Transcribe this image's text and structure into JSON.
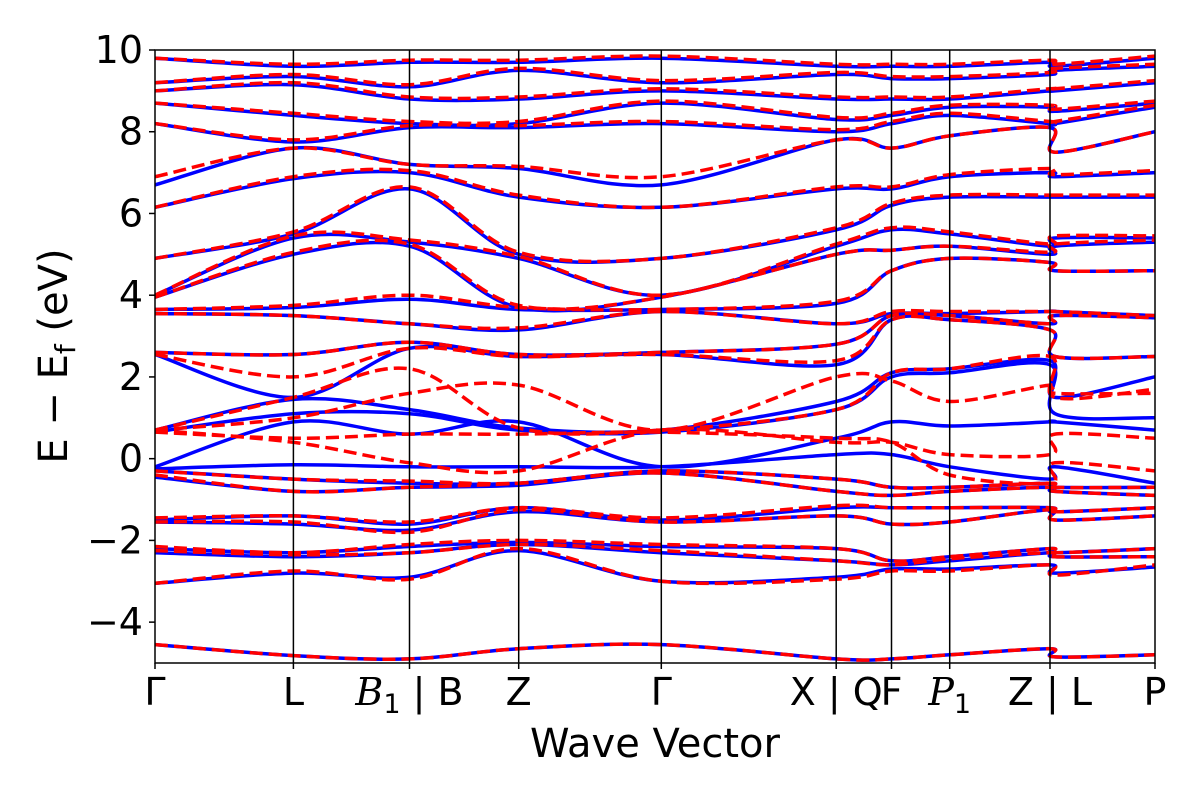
{
  "chart_data": {
    "type": "line",
    "xlabel": "Wave Vector",
    "ylabel": "E − Ef (eV)",
    "ylabel_parts": {
      "main": "E − E",
      "sub": "f",
      "unit": " (eV)"
    },
    "ylim": [
      -5,
      10
    ],
    "yticks": [
      {
        "value": 10,
        "label": "10"
      },
      {
        "value": 8,
        "label": "8"
      },
      {
        "value": 6,
        "label": "6"
      },
      {
        "value": 4,
        "label": "4"
      },
      {
        "value": 2,
        "label": "2"
      },
      {
        "value": 0,
        "label": "0"
      },
      {
        "value": -2,
        "label": "−2"
      },
      {
        "value": -4,
        "label": "−4"
      }
    ],
    "kpath": [
      {
        "pos": 0.0,
        "label": "Γ",
        "italic": false
      },
      {
        "pos": 0.1384,
        "label": "L",
        "italic": false
      },
      {
        "pos": 0.2545,
        "label": "B",
        "sub": "1",
        "suffix": " | B",
        "italic": true
      },
      {
        "pos": 0.3637,
        "label": "Z",
        "italic": false
      },
      {
        "pos": 0.5063,
        "label": "Γ",
        "italic": false
      },
      {
        "pos": 0.6812,
        "label": "X | Q",
        "italic": false
      },
      {
        "pos": 0.7365,
        "label": "F",
        "italic": false
      },
      {
        "pos": 0.7947,
        "label": "P",
        "sub": "1",
        "italic": true
      },
      {
        "pos": 0.895,
        "label": "Z | L",
        "italic": false
      },
      {
        "pos": 1.0,
        "label": "P",
        "italic": false
      }
    ],
    "series": [
      {
        "style": "solid",
        "color": "#0000ff",
        "bands": [
          [
            -4.55,
            -4.82,
            -4.9,
            -4.65,
            -4.55,
            -4.9,
            -4.9,
            -4.8,
            -4.65,
            -4.85,
            -4.8
          ],
          [
            -3.05,
            -2.8,
            -2.9,
            -2.25,
            -3.0,
            -2.9,
            -2.7,
            -2.7,
            -2.6,
            -2.8,
            -2.65
          ],
          [
            -2.3,
            -2.4,
            -2.3,
            -2.1,
            -2.3,
            -2.5,
            -2.6,
            -2.5,
            -2.3,
            -2.4,
            -2.4
          ],
          [
            -2.2,
            -2.3,
            -2.15,
            -2.05,
            -2.15,
            -2.2,
            -2.5,
            -2.4,
            -2.2,
            -2.3,
            -2.2
          ],
          [
            -1.55,
            -1.6,
            -1.75,
            -1.3,
            -1.55,
            -1.4,
            -1.6,
            -1.55,
            -1.25,
            -1.5,
            -1.4
          ],
          [
            -1.5,
            -1.4,
            -1.6,
            -1.2,
            -1.5,
            -1.2,
            -1.2,
            -1.2,
            -1.2,
            -1.3,
            -1.2
          ],
          [
            -0.45,
            -0.8,
            -0.7,
            -0.65,
            -0.35,
            -0.8,
            -0.9,
            -0.8,
            -0.7,
            -0.8,
            -0.9
          ],
          [
            -0.3,
            -0.5,
            -0.6,
            -0.6,
            -0.3,
            -0.5,
            -0.7,
            -0.7,
            -0.6,
            -0.7,
            -0.7
          ],
          [
            -0.25,
            -0.15,
            -0.2,
            -0.2,
            -0.2,
            0.1,
            0.1,
            -0.2,
            -0.5,
            -0.2,
            -0.6
          ],
          [
            -0.2,
            0.9,
            0.6,
            0.9,
            -0.2,
            0.5,
            0.9,
            0.8,
            0.9,
            0.9,
            0.7
          ],
          [
            0.65,
            1.1,
            1.1,
            0.7,
            0.65,
            1.2,
            2.0,
            2.1,
            2.3,
            1.1,
            1.0
          ],
          [
            0.7,
            1.45,
            1.2,
            0.75,
            0.7,
            1.4,
            2.1,
            2.2,
            2.4,
            1.5,
            2.0
          ],
          [
            2.55,
            1.5,
            2.7,
            2.5,
            2.55,
            2.3,
            3.4,
            3.4,
            3.15,
            2.5,
            2.5
          ],
          [
            2.6,
            2.55,
            2.85,
            2.55,
            2.6,
            2.8,
            3.5,
            3.5,
            3.3,
            3.5,
            3.45
          ],
          [
            3.55,
            3.5,
            3.3,
            3.15,
            3.6,
            3.3,
            3.55,
            3.55,
            3.6,
            3.6,
            3.5
          ],
          [
            3.65,
            3.7,
            3.9,
            3.65,
            3.65,
            3.8,
            4.6,
            4.9,
            4.8,
            4.6,
            4.6
          ],
          [
            3.95,
            5.0,
            5.2,
            3.7,
            3.95,
            5.0,
            5.1,
            5.2,
            5.0,
            5.2,
            5.3
          ],
          [
            4.0,
            5.4,
            5.3,
            4.9,
            4.0,
            5.2,
            5.6,
            5.5,
            5.2,
            5.4,
            5.4
          ],
          [
            4.9,
            5.5,
            6.6,
            5.0,
            4.9,
            5.6,
            6.2,
            6.4,
            6.4,
            6.4,
            6.4
          ],
          [
            6.15,
            6.85,
            7.0,
            6.4,
            6.15,
            6.6,
            6.6,
            6.9,
            7.0,
            6.9,
            7.0
          ],
          [
            6.7,
            7.6,
            7.2,
            7.1,
            6.7,
            7.8,
            7.6,
            7.9,
            8.1,
            7.5,
            8.0
          ],
          [
            8.2,
            7.75,
            8.1,
            8.1,
            8.2,
            8.0,
            8.2,
            8.4,
            8.2,
            8.2,
            8.6
          ],
          [
            8.7,
            8.4,
            8.2,
            8.2,
            8.7,
            8.3,
            8.4,
            8.6,
            8.6,
            8.5,
            8.7
          ],
          [
            9.0,
            9.15,
            8.8,
            8.8,
            9.0,
            8.8,
            8.8,
            8.8,
            9.0,
            9.0,
            9.2
          ],
          [
            9.2,
            9.35,
            9.1,
            9.5,
            9.2,
            9.4,
            9.3,
            9.3,
            9.4,
            9.5,
            9.6
          ],
          [
            9.8,
            9.6,
            9.7,
            9.7,
            9.8,
            9.6,
            9.6,
            9.6,
            9.7,
            9.6,
            9.8
          ]
        ]
      },
      {
        "style": "dashed",
        "color": "#ff0000",
        "bands": [
          [
            -4.55,
            -4.82,
            -4.9,
            -4.65,
            -4.55,
            -4.9,
            -4.9,
            -4.8,
            -4.65,
            -4.85,
            -4.8
          ],
          [
            -3.05,
            -2.75,
            -2.95,
            -2.2,
            -3.0,
            -2.95,
            -2.75,
            -2.75,
            -2.6,
            -2.85,
            -2.6
          ],
          [
            -2.25,
            -2.35,
            -2.3,
            -2.1,
            -2.25,
            -2.5,
            -2.6,
            -2.45,
            -2.3,
            -2.4,
            -2.4
          ],
          [
            -2.15,
            -2.3,
            -2.1,
            -2.0,
            -2.1,
            -2.2,
            -2.5,
            -2.4,
            -2.2,
            -2.3,
            -2.2
          ],
          [
            -1.55,
            -1.55,
            -1.8,
            -1.25,
            -1.55,
            -1.4,
            -1.6,
            -1.55,
            -1.25,
            -1.5,
            -1.4
          ],
          [
            -1.45,
            -1.4,
            -1.55,
            -1.2,
            -1.45,
            -1.15,
            -1.2,
            -1.2,
            -1.2,
            -1.3,
            -1.2
          ],
          [
            -0.4,
            -0.8,
            -0.7,
            -0.6,
            -0.35,
            -0.8,
            -0.9,
            -0.8,
            -0.7,
            -0.8,
            -0.9
          ],
          [
            -0.3,
            -0.5,
            -0.55,
            -0.6,
            -0.3,
            -0.5,
            -0.7,
            -0.7,
            -0.6,
            -0.7,
            -0.7
          ],
          [
            0.65,
            0.5,
            0.6,
            0.6,
            0.65,
            0.5,
            0.4,
            -0.4,
            -0.6,
            -0.1,
            -0.3
          ],
          [
            0.7,
            0.4,
            -0.1,
            -0.3,
            0.7,
            0.4,
            0.4,
            0.1,
            0.1,
            0.6,
            0.5
          ],
          [
            0.7,
            1.0,
            1.6,
            1.8,
            0.7,
            2.0,
            1.9,
            1.4,
            1.8,
            1.6,
            1.6
          ],
          [
            0.7,
            1.5,
            2.2,
            0.75,
            0.7,
            1.2,
            2.1,
            2.2,
            2.5,
            1.5,
            1.7
          ],
          [
            2.55,
            2.0,
            2.7,
            2.5,
            2.55,
            2.4,
            3.4,
            3.4,
            3.15,
            2.5,
            2.5
          ],
          [
            2.6,
            2.55,
            2.85,
            2.55,
            2.6,
            2.8,
            3.5,
            3.5,
            3.3,
            3.5,
            3.45
          ],
          [
            3.55,
            3.5,
            3.3,
            3.2,
            3.6,
            3.3,
            3.6,
            3.6,
            3.6,
            3.6,
            3.5
          ],
          [
            3.65,
            3.75,
            4.0,
            3.7,
            3.65,
            3.85,
            4.6,
            4.9,
            4.8,
            4.6,
            4.6
          ],
          [
            3.95,
            5.05,
            5.25,
            3.75,
            3.95,
            5.0,
            5.1,
            5.2,
            5.05,
            5.25,
            5.35
          ],
          [
            4.0,
            5.45,
            5.35,
            4.95,
            4.0,
            5.25,
            5.65,
            5.55,
            5.25,
            5.45,
            5.45
          ],
          [
            4.9,
            5.55,
            6.65,
            5.05,
            4.9,
            5.65,
            6.25,
            6.45,
            6.45,
            6.45,
            6.45
          ],
          [
            6.15,
            6.9,
            7.05,
            6.45,
            6.15,
            6.65,
            6.65,
            6.95,
            7.1,
            6.95,
            7.05
          ],
          [
            6.9,
            7.6,
            7.2,
            7.15,
            6.9,
            7.8,
            7.6,
            7.9,
            8.1,
            7.5,
            8.0
          ],
          [
            8.2,
            7.8,
            8.15,
            8.15,
            8.25,
            8.05,
            8.25,
            8.45,
            8.25,
            8.25,
            8.65
          ],
          [
            8.7,
            8.45,
            8.25,
            8.25,
            8.75,
            8.35,
            8.45,
            8.65,
            8.65,
            8.55,
            8.75
          ],
          [
            9.0,
            9.2,
            8.85,
            8.85,
            9.05,
            8.85,
            8.85,
            8.85,
            9.05,
            9.05,
            9.25
          ],
          [
            9.2,
            9.4,
            9.15,
            9.55,
            9.25,
            9.45,
            9.35,
            9.35,
            9.45,
            9.55,
            9.65
          ],
          [
            9.8,
            9.65,
            9.75,
            9.75,
            9.85,
            9.65,
            9.65,
            9.65,
            9.75,
            9.65,
            9.85
          ]
        ]
      }
    ],
    "band_sample_pos": [
      0.0,
      0.1384,
      0.2545,
      0.3637,
      0.5063,
      0.6812,
      0.7365,
      0.7947,
      0.895,
      0.9,
      1.0
    ],
    "grid": false,
    "legend": "none"
  }
}
